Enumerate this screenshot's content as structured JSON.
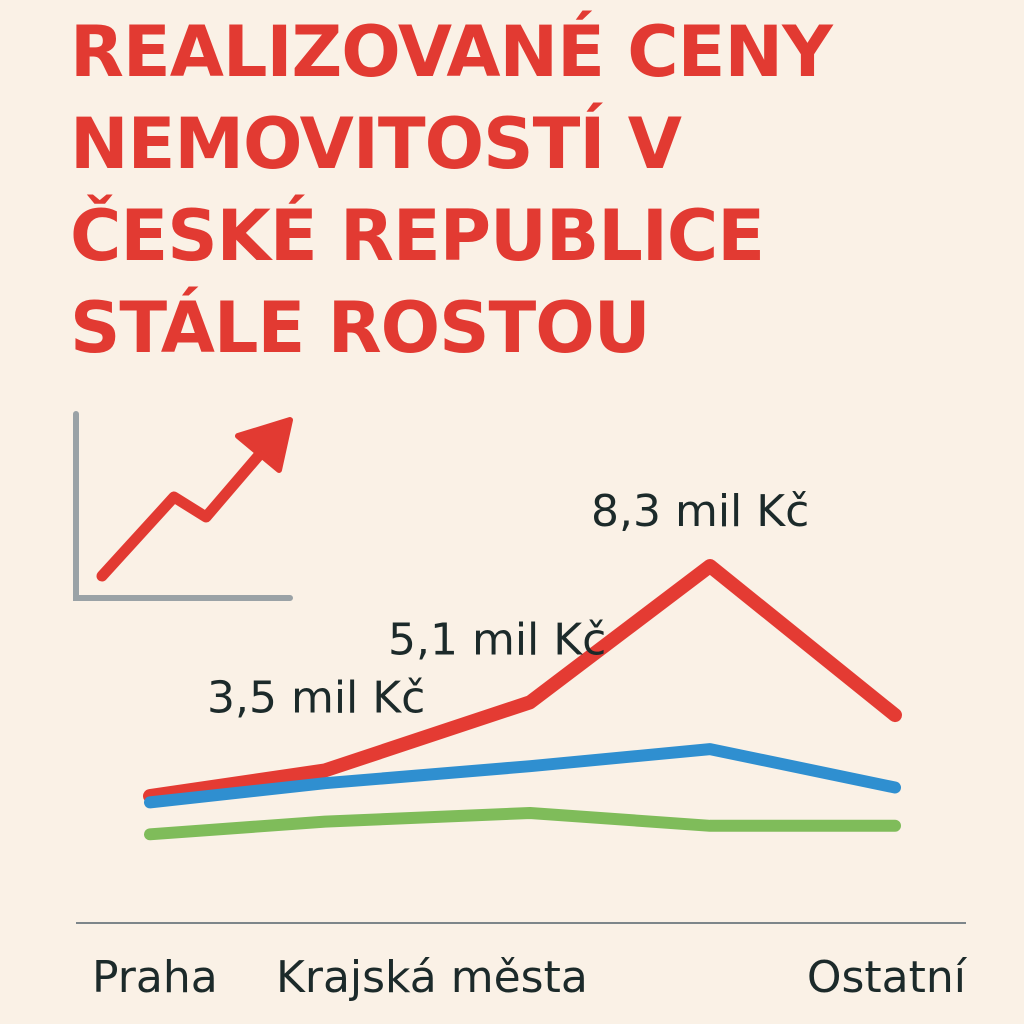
{
  "title_lines": [
    "REALIZOVANÉ CENY",
    "NEMOVITOSTÍ V",
    "ČESKÉ REPUBLICE",
    "STÁLE ROSTOU"
  ],
  "icon": {
    "name": "trend-up-arrow-icon",
    "axis_color": "#9aa2a6",
    "arrow_color": "#e23a32"
  },
  "colors": {
    "background": "#faf1e6",
    "title": "#e23a32",
    "text": "#1c2a2a",
    "baseline": "#7d868a"
  },
  "chart_data": {
    "type": "line",
    "x": [
      0,
      1,
      2,
      3,
      4
    ],
    "categories": [
      "Praha",
      "Krajská města",
      "Ostatní"
    ],
    "category_x": [
      0,
      1,
      4
    ],
    "series": [
      {
        "values": [
          2.9,
          3.5,
          5.1,
          8.3,
          4.8
        ],
        "color": "#e43b33"
      },
      {
        "values": [
          2.75,
          3.2,
          3.6,
          4.0,
          3.1
        ],
        "color": "#2f8fd0"
      },
      {
        "values": [
          2.0,
          2.3,
          2.5,
          2.2,
          2.2
        ],
        "color": "#7fbc5a"
      }
    ],
    "data_labels": [
      {
        "text": "3,5 mil Kč",
        "x": 1,
        "y": 3.5
      },
      {
        "text": "5,1 mil Kč",
        "x": 2,
        "y": 5.1
      },
      {
        "text": "8,3 mil Kč",
        "x": 3,
        "y": 8.3
      }
    ],
    "title": "",
    "xlabel": "",
    "ylabel": "",
    "grid": false,
    "legend": false
  }
}
